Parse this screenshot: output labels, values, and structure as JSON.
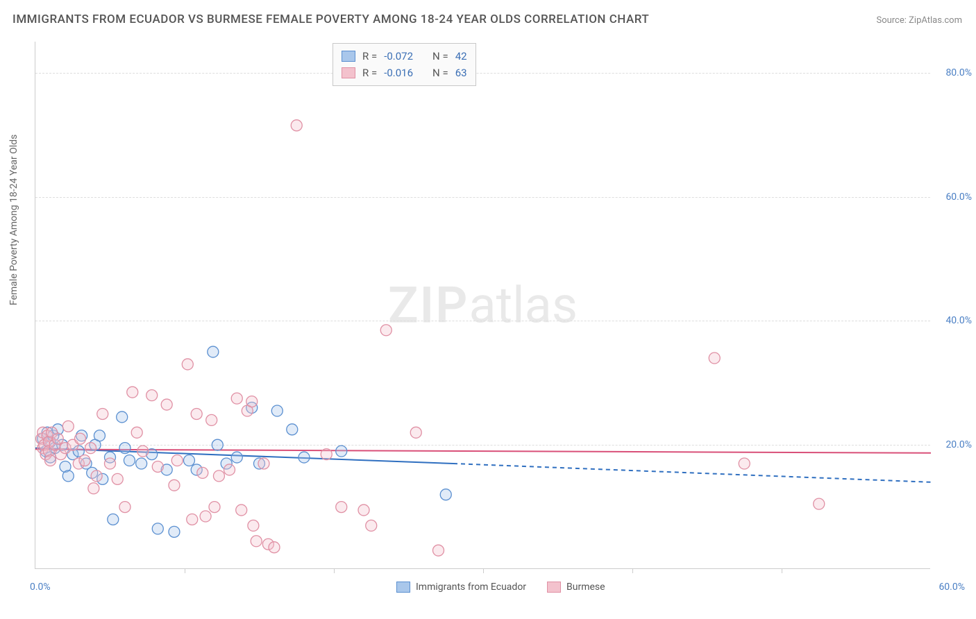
{
  "title": "IMMIGRANTS FROM ECUADOR VS BURMESE FEMALE POVERTY AMONG 18-24 YEAR OLDS CORRELATION CHART",
  "source": "Source: ZipAtlas.com",
  "y_axis_label": "Female Poverty Among 18-24 Year Olds",
  "watermark_prefix": "ZIP",
  "watermark_suffix": "atlas",
  "chart": {
    "type": "scatter",
    "background_color": "#ffffff",
    "grid_color": "#dddddd",
    "axis_color": "#cccccc",
    "tick_label_color": "#4a7fc4",
    "xlim": [
      0,
      60
    ],
    "ylim": [
      0,
      85
    ],
    "yticks": [
      {
        "value": 20,
        "label": "20.0%"
      },
      {
        "value": 40,
        "label": "40.0%"
      },
      {
        "value": 60,
        "label": "60.0%"
      },
      {
        "value": 80,
        "label": "80.0%"
      }
    ],
    "xticks": [
      {
        "value": 0,
        "label": "0.0%"
      },
      {
        "value": 10,
        "label": ""
      },
      {
        "value": 20,
        "label": ""
      },
      {
        "value": 30,
        "label": ""
      },
      {
        "value": 40,
        "label": ""
      },
      {
        "value": 50,
        "label": ""
      },
      {
        "value": 60,
        "label": "60.0%"
      }
    ],
    "marker_radius": 8,
    "marker_fill_opacity": 0.35,
    "marker_stroke_width": 1.3,
    "series": [
      {
        "name": "Immigrants from Ecuador",
        "legend_label": "Immigrants from Ecuador",
        "color_fill": "#a9c7eb",
        "color_stroke": "#5a8fd0",
        "R": "-0.072",
        "N": "42",
        "regression": {
          "x0": 0,
          "y0": 19.5,
          "x1": 28,
          "y1": 17.0,
          "extrapolate_x": 60,
          "extrapolate_y": 14.0,
          "stroke": "#2f6fc0",
          "stroke_width": 2,
          "dash": "6,5"
        },
        "points": [
          {
            "x": 0.5,
            "y": 21
          },
          {
            "x": 0.7,
            "y": 19
          },
          {
            "x": 0.8,
            "y": 22
          },
          {
            "x": 1.0,
            "y": 20.5
          },
          {
            "x": 1.0,
            "y": 18
          },
          {
            "x": 1.2,
            "y": 21.5
          },
          {
            "x": 1.3,
            "y": 19.5
          },
          {
            "x": 1.5,
            "y": 22.5
          },
          {
            "x": 1.8,
            "y": 20
          },
          {
            "x": 2.0,
            "y": 16.5
          },
          {
            "x": 2.2,
            "y": 15
          },
          {
            "x": 2.5,
            "y": 18.5
          },
          {
            "x": 2.9,
            "y": 19
          },
          {
            "x": 3.1,
            "y": 21.5
          },
          {
            "x": 3.4,
            "y": 17
          },
          {
            "x": 3.8,
            "y": 15.5
          },
          {
            "x": 4.0,
            "y": 20
          },
          {
            "x": 4.3,
            "y": 21.5
          },
          {
            "x": 4.5,
            "y": 14.5
          },
          {
            "x": 5.0,
            "y": 18
          },
          {
            "x": 5.2,
            "y": 8
          },
          {
            "x": 5.8,
            "y": 24.5
          },
          {
            "x": 6.0,
            "y": 19.5
          },
          {
            "x": 6.3,
            "y": 17.5
          },
          {
            "x": 7.1,
            "y": 17
          },
          {
            "x": 7.8,
            "y": 18.5
          },
          {
            "x": 8.2,
            "y": 6.5
          },
          {
            "x": 8.8,
            "y": 16
          },
          {
            "x": 9.3,
            "y": 6
          },
          {
            "x": 10.3,
            "y": 17.5
          },
          {
            "x": 10.8,
            "y": 16
          },
          {
            "x": 11.9,
            "y": 35
          },
          {
            "x": 12.2,
            "y": 20
          },
          {
            "x": 12.8,
            "y": 17
          },
          {
            "x": 13.5,
            "y": 18
          },
          {
            "x": 14.5,
            "y": 26
          },
          {
            "x": 15.0,
            "y": 17
          },
          {
            "x": 16.2,
            "y": 25.5
          },
          {
            "x": 17.2,
            "y": 22.5
          },
          {
            "x": 18.0,
            "y": 18
          },
          {
            "x": 20.5,
            "y": 19
          },
          {
            "x": 27.5,
            "y": 12
          }
        ]
      },
      {
        "name": "Burmese",
        "legend_label": "Burmese",
        "color_fill": "#f3c2cd",
        "color_stroke": "#e090a4",
        "R": "-0.016",
        "N": "63",
        "regression": {
          "x0": 0,
          "y0": 19.3,
          "x1": 60,
          "y1": 18.7,
          "extrapolate_x": 60,
          "extrapolate_y": 18.7,
          "stroke": "#d94f78",
          "stroke_width": 2,
          "dash": ""
        },
        "points": [
          {
            "x": 0.4,
            "y": 21
          },
          {
            "x": 0.5,
            "y": 19.5
          },
          {
            "x": 0.5,
            "y": 22
          },
          {
            "x": 0.6,
            "y": 20
          },
          {
            "x": 0.7,
            "y": 18.5
          },
          {
            "x": 0.8,
            "y": 21.5
          },
          {
            "x": 0.9,
            "y": 20.5
          },
          {
            "x": 0.9,
            "y": 19
          },
          {
            "x": 1.0,
            "y": 17.5
          },
          {
            "x": 1.1,
            "y": 22
          },
          {
            "x": 1.3,
            "y": 20
          },
          {
            "x": 1.5,
            "y": 21
          },
          {
            "x": 1.7,
            "y": 18.5
          },
          {
            "x": 2.0,
            "y": 19.5
          },
          {
            "x": 2.2,
            "y": 23
          },
          {
            "x": 2.5,
            "y": 20
          },
          {
            "x": 2.9,
            "y": 17
          },
          {
            "x": 3.0,
            "y": 21
          },
          {
            "x": 3.3,
            "y": 17.5
          },
          {
            "x": 3.7,
            "y": 19.5
          },
          {
            "x": 3.9,
            "y": 13
          },
          {
            "x": 4.1,
            "y": 15
          },
          {
            "x": 4.5,
            "y": 25
          },
          {
            "x": 5.0,
            "y": 17
          },
          {
            "x": 5.5,
            "y": 14.5
          },
          {
            "x": 6.0,
            "y": 10
          },
          {
            "x": 6.5,
            "y": 28.5
          },
          {
            "x": 6.8,
            "y": 22
          },
          {
            "x": 7.2,
            "y": 19
          },
          {
            "x": 7.8,
            "y": 28
          },
          {
            "x": 8.2,
            "y": 16.5
          },
          {
            "x": 8.8,
            "y": 26.5
          },
          {
            "x": 9.3,
            "y": 13.5
          },
          {
            "x": 9.5,
            "y": 17.5
          },
          {
            "x": 10.2,
            "y": 33
          },
          {
            "x": 10.5,
            "y": 8
          },
          {
            "x": 10.8,
            "y": 25
          },
          {
            "x": 11.2,
            "y": 15.5
          },
          {
            "x": 11.4,
            "y": 8.5
          },
          {
            "x": 11.8,
            "y": 24
          },
          {
            "x": 12.0,
            "y": 10
          },
          {
            "x": 12.3,
            "y": 15
          },
          {
            "x": 13.0,
            "y": 16
          },
          {
            "x": 13.5,
            "y": 27.5
          },
          {
            "x": 13.8,
            "y": 9.5
          },
          {
            "x": 14.2,
            "y": 25.5
          },
          {
            "x": 14.5,
            "y": 27
          },
          {
            "x": 14.6,
            "y": 7
          },
          {
            "x": 14.8,
            "y": 4.5
          },
          {
            "x": 15.3,
            "y": 17
          },
          {
            "x": 15.6,
            "y": 4
          },
          {
            "x": 16.0,
            "y": 3.5
          },
          {
            "x": 17.5,
            "y": 71.5
          },
          {
            "x": 19.5,
            "y": 18.5
          },
          {
            "x": 20.5,
            "y": 10
          },
          {
            "x": 22.0,
            "y": 9.5
          },
          {
            "x": 22.5,
            "y": 7
          },
          {
            "x": 23.5,
            "y": 38.5
          },
          {
            "x": 25.5,
            "y": 22
          },
          {
            "x": 27.0,
            "y": 3
          },
          {
            "x": 45.5,
            "y": 34
          },
          {
            "x": 52.5,
            "y": 10.5
          },
          {
            "x": 47.5,
            "y": 17
          }
        ]
      }
    ]
  },
  "legend_stats": {
    "r_label": "R =",
    "n_label": "N ="
  }
}
